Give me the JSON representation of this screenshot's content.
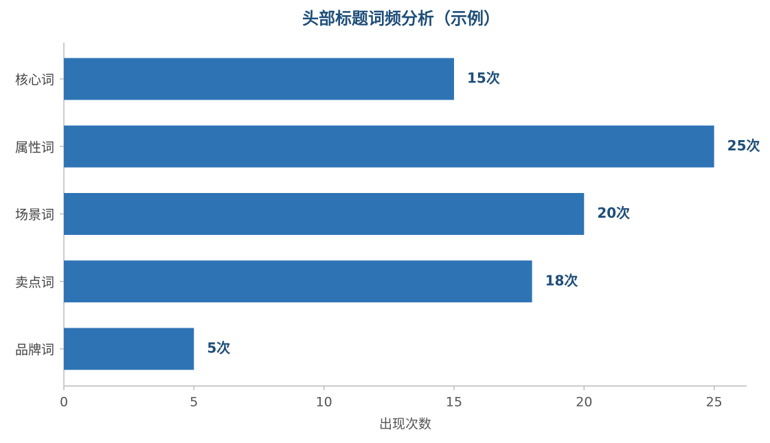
{
  "chart_data": {
    "type": "bar",
    "orientation": "horizontal",
    "title": "头部标题词频分析（示例）",
    "x_label": "出现次数",
    "categories": [
      "核心词",
      "属性词",
      "场景词",
      "卖点词",
      "品牌词"
    ],
    "values": [
      15,
      25,
      20,
      18,
      5
    ],
    "value_labels": [
      "15次",
      "25次",
      "20次",
      "18次",
      "5次"
    ],
    "color": "#2e74b5",
    "xlim": [
      0,
      26.25
    ],
    "xticks": [
      0,
      5,
      10,
      15,
      20,
      25
    ],
    "grid": false
  }
}
